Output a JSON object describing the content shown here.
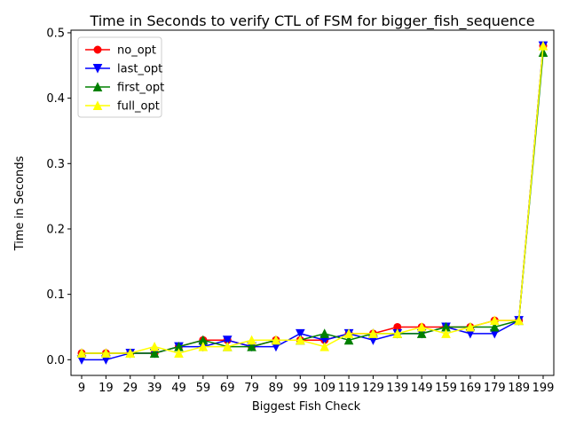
{
  "chart_data": {
    "type": "line",
    "title": "Time in Seconds to verify CTL of FSM for bigger_fish_sequence",
    "xlabel": "Biggest Fish Check",
    "ylabel": "Time in Seconds",
    "categories": [
      "9",
      "19",
      "29",
      "39",
      "49",
      "59",
      "69",
      "79",
      "89",
      "99",
      "109",
      "119",
      "129",
      "139",
      "149",
      "159",
      "169",
      "179",
      "189",
      "199"
    ],
    "ylim": [
      -0.024,
      0.504
    ],
    "yticks": [
      0.0,
      0.1,
      0.2,
      0.3,
      0.4,
      0.5
    ],
    "ytick_labels": [
      "0.0",
      "0.1",
      "0.2",
      "0.3",
      "0.4",
      "0.5"
    ],
    "grid": false,
    "legend_position": "upper-left",
    "series": [
      {
        "name": "no_opt",
        "color": "#ff0000",
        "marker": "circle",
        "values": [
          0.01,
          0.01,
          0.01,
          0.01,
          0.02,
          0.03,
          0.03,
          0.02,
          0.03,
          0.03,
          0.03,
          0.04,
          0.04,
          0.05,
          0.05,
          0.05,
          0.05,
          0.06,
          0.06,
          0.48
        ]
      },
      {
        "name": "last_opt",
        "color": "#0000ff",
        "marker": "triangle-down",
        "values": [
          0.0,
          0.0,
          0.01,
          0.01,
          0.02,
          0.02,
          0.03,
          0.02,
          0.02,
          0.04,
          0.03,
          0.04,
          0.03,
          0.04,
          0.04,
          0.05,
          0.04,
          0.04,
          0.06,
          0.48
        ]
      },
      {
        "name": "first_opt",
        "color": "#008000",
        "marker": "triangle-up",
        "values": [
          0.01,
          0.01,
          0.01,
          0.01,
          0.02,
          0.03,
          0.02,
          0.02,
          0.03,
          0.03,
          0.04,
          0.03,
          0.04,
          0.04,
          0.04,
          0.05,
          0.05,
          0.05,
          0.06,
          0.47
        ]
      },
      {
        "name": "full_opt",
        "color": "#ffff00",
        "marker": "triangle-up",
        "values": [
          0.01,
          0.01,
          0.01,
          0.02,
          0.01,
          0.02,
          0.02,
          0.03,
          0.03,
          0.03,
          0.02,
          0.04,
          0.04,
          0.04,
          0.05,
          0.04,
          0.05,
          0.06,
          0.06,
          0.48
        ]
      }
    ]
  }
}
